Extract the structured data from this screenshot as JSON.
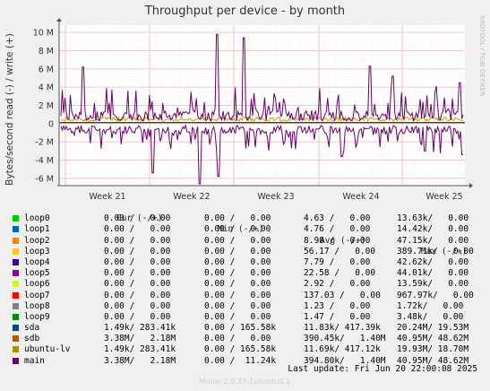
{
  "chart_data": {
    "type": "line",
    "title": "Throughput per device - by month",
    "ylabel": "Bytes/second read (-) / write (+)",
    "ylim": [
      -6.8,
      10.8
    ],
    "yticks": [
      {
        "v": 10,
        "label": "10 M"
      },
      {
        "v": 8,
        "label": "8 M"
      },
      {
        "v": 6,
        "label": "6 M"
      },
      {
        "v": 4,
        "label": "4 M"
      },
      {
        "v": 2,
        "label": "2 M"
      },
      {
        "v": 0,
        "label": "0"
      },
      {
        "v": -2,
        "label": "-2 M"
      },
      {
        "v": -4,
        "label": "-4 M"
      },
      {
        "v": -6,
        "label": "-6 M"
      }
    ],
    "xticks": [
      "Week 21",
      "Week 22",
      "Week 23",
      "Week 24",
      "Week 25"
    ],
    "series": [
      {
        "name": "main",
        "color": "#660066",
        "write_peaks": [
          6.2,
          9.8,
          9.4,
          6.3,
          5.2,
          4.5
        ],
        "read_dips": [
          -5.4,
          -6.6,
          -5.8,
          -3.6,
          -3.0,
          -3.4
        ]
      },
      {
        "name": "sdb",
        "color": "#c8a000"
      }
    ]
  },
  "legend": {
    "headers": [
      "Cur (-/+)",
      "Min (-/+)",
      "Avg (-/+)",
      "Max (-/+)"
    ],
    "rows": [
      {
        "name": "loop0",
        "color": "#00cc00",
        "cur": "0.00 /   0.00",
        "min": "0.00 /   0.00",
        "avg": "4.63 /   0.00",
        "max": "13.63k/   0.00"
      },
      {
        "name": "loop1",
        "color": "#0066b3",
        "cur": "0.00 /   0.00",
        "min": "0.00 /   0.00",
        "avg": "4.76 /   0.00",
        "max": "14.42k/   0.00"
      },
      {
        "name": "loop2",
        "color": "#ff8000",
        "cur": "0.00 /   0.00",
        "min": "0.00 /   0.00",
        "avg": "8.98 /   0.00",
        "max": "47.15k/   0.00"
      },
      {
        "name": "loop3",
        "color": "#ffcc00",
        "cur": "0.00 /   0.00",
        "min": "0.00 /   0.00",
        "avg": "56.17 /   0.00",
        "max": "389.71k/   0.00"
      },
      {
        "name": "loop4",
        "color": "#330099",
        "cur": "0.00 /   0.00",
        "min": "0.00 /   0.00",
        "avg": "7.79 /   0.00",
        "max": "42.62k/   0.00"
      },
      {
        "name": "loop5",
        "color": "#990099",
        "cur": "0.00 /   0.00",
        "min": "0.00 /   0.00",
        "avg": "22.58 /   0.00",
        "max": "44.01k/   0.00"
      },
      {
        "name": "loop6",
        "color": "#ccff00",
        "cur": "0.00 /   0.00",
        "min": "0.00 /   0.00",
        "avg": "2.92 /   0.00",
        "max": "13.59k/   0.00"
      },
      {
        "name": "loop7",
        "color": "#ff0000",
        "cur": "0.00 /   0.00",
        "min": "0.00 /   0.00",
        "avg": "137.03 /   0.00",
        "max": "967.97k/   0.00"
      },
      {
        "name": "loop8",
        "color": "#808080",
        "cur": "0.00 /   0.00",
        "min": "0.00 /   0.00",
        "avg": "1.23 /   0.00",
        "max": "1.72k/   0.00"
      },
      {
        "name": "loop9",
        "color": "#008f00",
        "cur": "0.00 /   0.00",
        "min": "0.00 /   0.00",
        "avg": "1.47 /   0.00",
        "max": "3.48k/   0.00"
      },
      {
        "name": "sda",
        "color": "#00487d",
        "cur": "1.49k/ 283.41k",
        "min": "0.00 / 165.58k",
        "avg": "11.83k/ 417.39k",
        "max": "20.24M/ 19.53M"
      },
      {
        "name": "sdb",
        "color": "#b35a00",
        "cur": "3.38M/   2.18M",
        "min": "0.00 /   0.00",
        "avg": "390.45k/   1.40M",
        "max": "40.95M/ 48.62M"
      },
      {
        "name": "ubuntu-lv",
        "color": "#b38f00",
        "cur": "1.49k/ 283.41k",
        "min": "0.00 / 165.58k",
        "avg": "11.69k/ 417.12k",
        "max": "19.93M/ 18.70M"
      },
      {
        "name": "main",
        "color": "#6b006b",
        "cur": "3.38M/   2.18M",
        "min": "0.00 /  11.24k",
        "avg": "394.80k/   1.40M",
        "max": "40.95M/ 48.62M"
      }
    ]
  },
  "last_update": "Last update: Fri Jun 20 22:00:08 2025",
  "footer": "Munin 2.0.37-1ubuntu0.1",
  "watermark": "RRDTOOL / TOBI OETIKER"
}
